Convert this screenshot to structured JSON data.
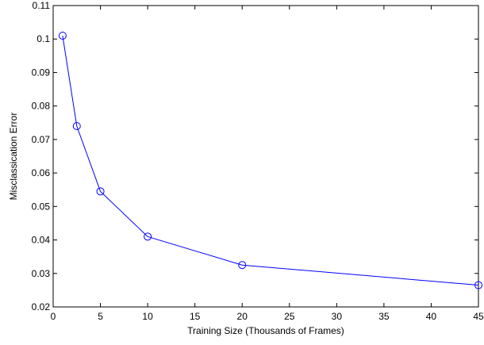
{
  "chart_data": {
    "type": "line",
    "title": "",
    "xlabel": "Training Size (Thousands of Frames)",
    "ylabel": "Misclassication Error",
    "xlim": [
      0,
      45
    ],
    "ylim": [
      0.02,
      0.11
    ],
    "xticks": [
      0,
      5,
      10,
      15,
      20,
      25,
      30,
      35,
      40,
      45
    ],
    "xtick_labels": [
      "0",
      "5",
      "10",
      "15",
      "20",
      "25",
      "30",
      "35",
      "40",
      "45"
    ],
    "yticks": [
      0.02,
      0.03,
      0.04,
      0.05,
      0.06,
      0.07,
      0.08,
      0.09,
      0.1,
      0.11
    ],
    "ytick_labels": [
      "0.02",
      "0.03",
      "0.04",
      "0.05",
      "0.06",
      "0.07",
      "0.08",
      "0.09",
      "0.1",
      "0.11"
    ],
    "grid": false,
    "legend": "none",
    "series": [
      {
        "x": [
          1,
          2.5,
          5,
          10,
          20,
          45
        ],
        "y": [
          0.101,
          0.074,
          0.0545,
          0.041,
          0.0325,
          0.0265
        ],
        "color": "#0000ff",
        "marker": "circle"
      }
    ]
  }
}
